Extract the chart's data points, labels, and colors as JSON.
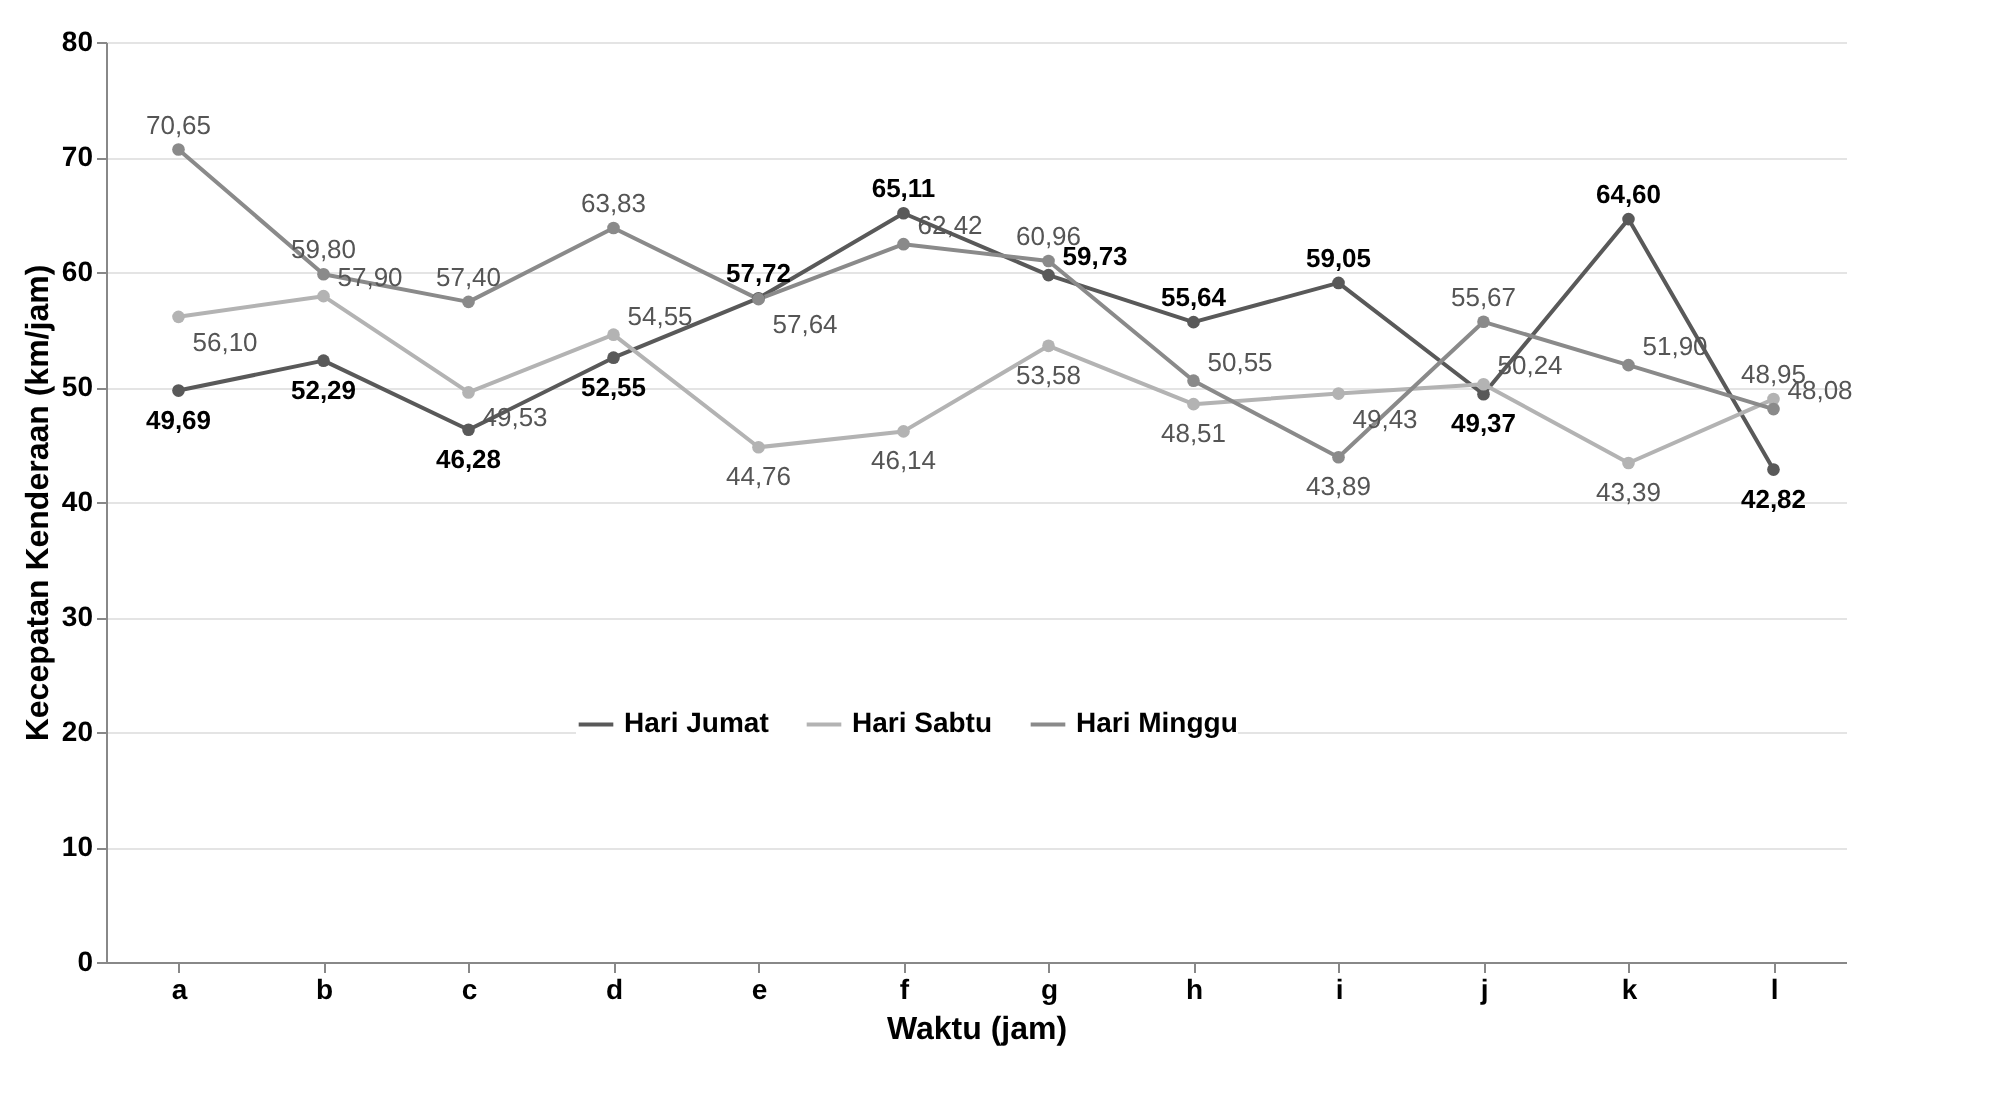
{
  "chart_data": {
    "type": "line",
    "xlabel": "Waktu (jam)",
    "ylabel": "Kecepatan  Kenderaan  (km/jam)",
    "categories": [
      "a",
      "b",
      "c",
      "d",
      "e",
      "f",
      "g",
      "h",
      "i",
      "j",
      "k",
      "l"
    ],
    "series": [
      {
        "name": "Hari Jumat",
        "color": "#595959",
        "values": [
          49.69,
          52.29,
          46.28,
          52.55,
          57.72,
          65.11,
          59.73,
          55.64,
          59.05,
          49.37,
          64.6,
          42.82
        ],
        "value_labels": [
          "49,69",
          "52,29",
          "46,28",
          "52,55",
          "57,72",
          "65,11",
          "59,73",
          "55,64",
          "59,05",
          "49,37",
          "64,60",
          "42,82"
        ]
      },
      {
        "name": "Hari Sabtu",
        "color": "#b3b3b3",
        "values": [
          56.1,
          57.9,
          49.53,
          54.55,
          44.76,
          46.14,
          53.58,
          48.51,
          49.43,
          50.24,
          43.39,
          48.95
        ],
        "value_labels": [
          "56,10",
          "57,90",
          "49,53",
          "54,55",
          "44,76",
          "46,14",
          "53,58",
          "48,51",
          "49,43",
          "50,24",
          "43,39",
          "48,95"
        ]
      },
      {
        "name": "Hari Minggu",
        "color": "#8a8a8a",
        "values": [
          70.65,
          59.8,
          57.4,
          63.83,
          57.64,
          62.42,
          60.96,
          50.55,
          43.89,
          55.67,
          51.9,
          48.08
        ],
        "value_labels": [
          "70,65",
          "59,80",
          "57,40",
          "63,83",
          "57,64",
          "62,42",
          "60,96",
          "50,55",
          "43,89",
          "55,67",
          "51,90",
          "48,08"
        ]
      }
    ],
    "ylim": [
      0,
      80
    ],
    "yticks": [
      0,
      10,
      20,
      30,
      40,
      50,
      60,
      70,
      80
    ],
    "grid": "y",
    "legend": "center",
    "marker": "circle",
    "line_style": "solid"
  }
}
